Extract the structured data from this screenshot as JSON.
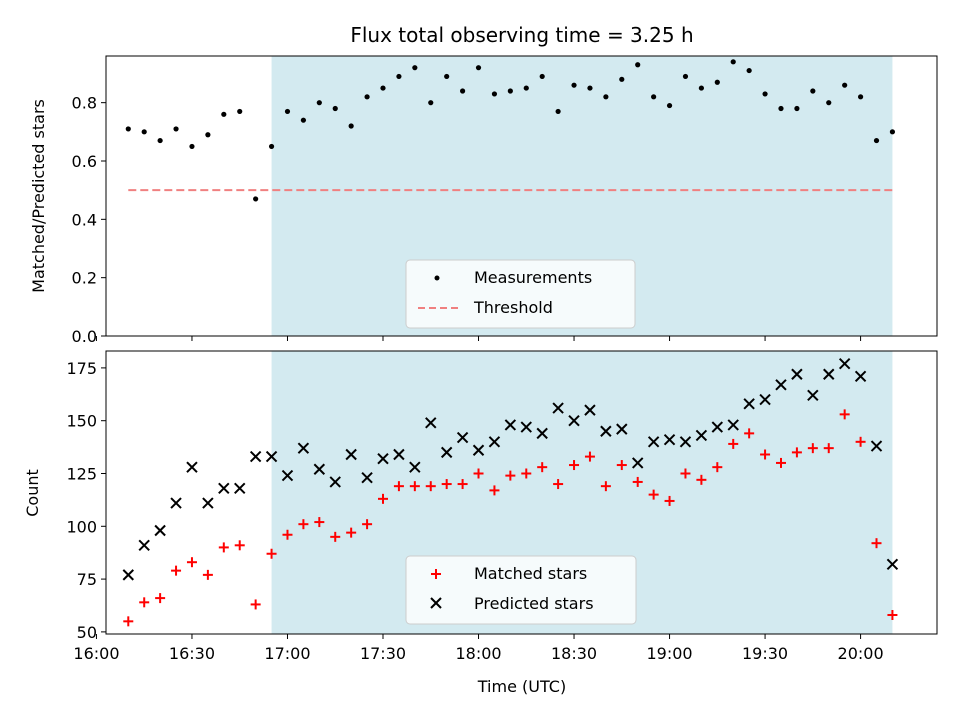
{
  "chart_data": [
    {
      "type": "scatter",
      "title": "Flux total observing time = 3.25 h",
      "xlabel": "",
      "ylabel": "Matched/Predicted stars",
      "xlim": [
        "16:03",
        "20:24"
      ],
      "ylim": [
        0,
        0.96
      ],
      "yticks": [
        0.0,
        0.2,
        0.4,
        0.6,
        0.8
      ],
      "ytick_labels": [
        "0.0",
        "0.2",
        "0.4",
        "0.6",
        "0.8"
      ],
      "shaded_span": [
        "16:55",
        "20:10"
      ],
      "shade_color": "#d3eaf0",
      "grid": false,
      "legend_position": "lower-center",
      "series": [
        {
          "name": "Measurements",
          "kind": "scatter",
          "color": "#000000",
          "x": [
            "16:10",
            "16:15",
            "16:20",
            "16:25",
            "16:30",
            "16:35",
            "16:40",
            "16:45",
            "16:50",
            "16:55",
            "17:00",
            "17:05",
            "17:10",
            "17:15",
            "17:20",
            "17:25",
            "17:30",
            "17:35",
            "17:40",
            "17:45",
            "17:50",
            "17:55",
            "18:00",
            "18:05",
            "18:10",
            "18:15",
            "18:20",
            "18:25",
            "18:30",
            "18:35",
            "18:40",
            "18:45",
            "18:50",
            "18:55",
            "19:00",
            "19:05",
            "19:10",
            "19:15",
            "19:20",
            "19:25",
            "19:30",
            "19:35",
            "19:40",
            "19:45",
            "19:50",
            "19:55",
            "20:00",
            "20:05",
            "20:10"
          ],
          "y": [
            0.71,
            0.7,
            0.67,
            0.71,
            0.65,
            0.69,
            0.76,
            0.77,
            0.47,
            0.65,
            0.77,
            0.74,
            0.8,
            0.78,
            0.72,
            0.82,
            0.85,
            0.89,
            0.92,
            0.8,
            0.89,
            0.84,
            0.92,
            0.83,
            0.84,
            0.85,
            0.89,
            0.77,
            0.86,
            0.85,
            0.82,
            0.88,
            0.93,
            0.82,
            0.79,
            0.89,
            0.85,
            0.87,
            0.94,
            0.91,
            0.83,
            0.78,
            0.78,
            0.84,
            0.8,
            0.86,
            0.82,
            0.67,
            0.7
          ]
        },
        {
          "name": "Threshold",
          "kind": "dashed-line",
          "color": "#f08080",
          "x": [
            "16:10",
            "20:10"
          ],
          "y": [
            0.5,
            0.5
          ]
        }
      ]
    },
    {
      "type": "scatter",
      "title": "",
      "xlabel": "Time (UTC)",
      "ylabel": "Count",
      "xlim": [
        "16:03",
        "20:24"
      ],
      "ylim": [
        49,
        183
      ],
      "xtick_labels": [
        "16:00",
        "16:30",
        "17:00",
        "17:30",
        "18:00",
        "18:30",
        "19:00",
        "19:30",
        "20:00"
      ],
      "yticks": [
        50,
        75,
        100,
        125,
        150,
        175
      ],
      "ytick_labels": [
        "50",
        "75",
        "100",
        "125",
        "150",
        "175"
      ],
      "shaded_span": [
        "16:55",
        "20:10"
      ],
      "shade_color": "#d3eaf0",
      "grid": false,
      "legend_position": "lower-center",
      "series": [
        {
          "name": "Matched stars",
          "kind": "plus",
          "color": "#ff0000",
          "x": [
            "16:10",
            "16:15",
            "16:20",
            "16:25",
            "16:30",
            "16:35",
            "16:40",
            "16:45",
            "16:50",
            "16:55",
            "17:00",
            "17:05",
            "17:10",
            "17:15",
            "17:20",
            "17:25",
            "17:30",
            "17:35",
            "17:40",
            "17:45",
            "17:50",
            "17:55",
            "18:00",
            "18:05",
            "18:10",
            "18:15",
            "18:20",
            "18:25",
            "18:30",
            "18:35",
            "18:40",
            "18:45",
            "18:50",
            "18:55",
            "19:00",
            "19:05",
            "19:10",
            "19:15",
            "19:20",
            "19:25",
            "19:30",
            "19:35",
            "19:40",
            "19:45",
            "19:50",
            "19:55",
            "20:00",
            "20:05",
            "20:10"
          ],
          "y": [
            55,
            64,
            66,
            79,
            83,
            77,
            90,
            91,
            63,
            87,
            96,
            101,
            102,
            95,
            97,
            101,
            113,
            119,
            119,
            119,
            120,
            120,
            125,
            117,
            124,
            125,
            128,
            120,
            129,
            133,
            119,
            129,
            121,
            115,
            112,
            125,
            122,
            128,
            139,
            144,
            134,
            130,
            135,
            137,
            137,
            153,
            140,
            92,
            58
          ]
        },
        {
          "name": "Predicted stars",
          "kind": "x",
          "color": "#000000",
          "x": [
            "16:10",
            "16:15",
            "16:20",
            "16:25",
            "16:30",
            "16:35",
            "16:40",
            "16:45",
            "16:50",
            "16:55",
            "17:00",
            "17:05",
            "17:10",
            "17:15",
            "17:20",
            "17:25",
            "17:30",
            "17:35",
            "17:40",
            "17:45",
            "17:50",
            "17:55",
            "18:00",
            "18:05",
            "18:10",
            "18:15",
            "18:20",
            "18:25",
            "18:30",
            "18:35",
            "18:40",
            "18:45",
            "18:50",
            "18:55",
            "19:00",
            "19:05",
            "19:10",
            "19:15",
            "19:20",
            "19:25",
            "19:30",
            "19:35",
            "19:40",
            "19:45",
            "19:50",
            "19:55",
            "20:00",
            "20:05",
            "20:10"
          ],
          "y": [
            77,
            91,
            98,
            111,
            128,
            111,
            118,
            118,
            133,
            133,
            124,
            137,
            127,
            121,
            134,
            123,
            132,
            134,
            128,
            149,
            135,
            142,
            136,
            140,
            148,
            147,
            144,
            156,
            150,
            155,
            145,
            146,
            130,
            140,
            141,
            140,
            143,
            147,
            148,
            158,
            160,
            167,
            172,
            162,
            172,
            177,
            171,
            138,
            82
          ]
        }
      ]
    }
  ]
}
